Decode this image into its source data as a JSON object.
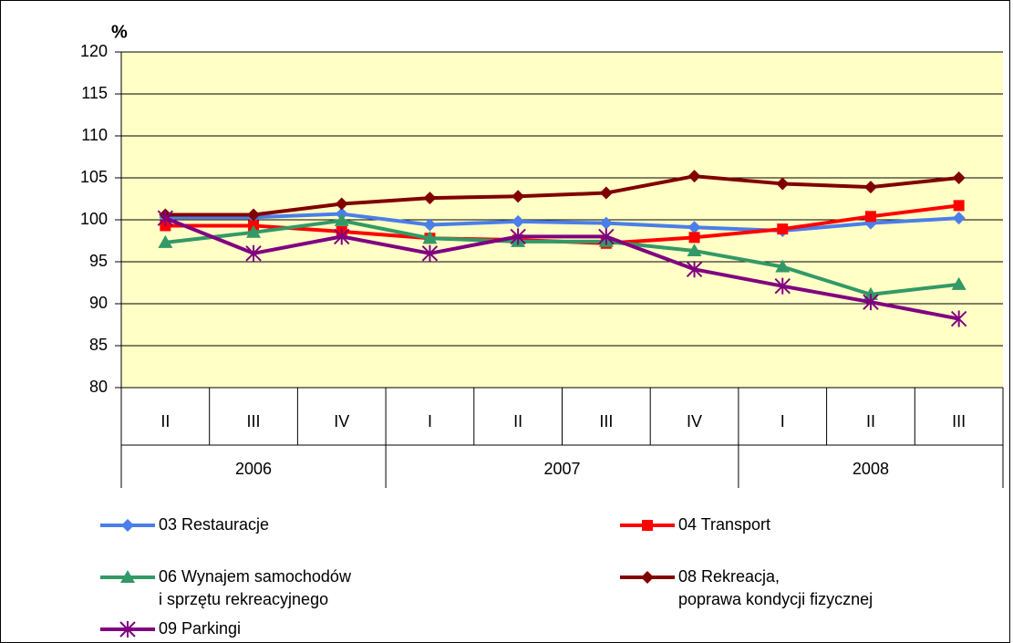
{
  "chart_data": {
    "type": "line",
    "ylabel": "%",
    "category_groups": [
      {
        "label": "2006",
        "categories": [
          "II",
          "III",
          "IV"
        ]
      },
      {
        "label": "2007",
        "categories": [
          "I",
          "II",
          "III",
          "IV"
        ]
      },
      {
        "label": "2008",
        "categories": [
          "I",
          "II",
          "III"
        ]
      }
    ],
    "ylim": [
      80,
      120
    ],
    "yticks": [
      80,
      85,
      90,
      95,
      100,
      105,
      110,
      115,
      120
    ],
    "grid": true,
    "series": [
      {
        "name": "03 Restauracje",
        "color": "#4a7ee8",
        "marker": "diamond",
        "values": [
          100.3,
          100.3,
          100.7,
          99.4,
          99.8,
          99.6,
          99.1,
          98.7,
          99.6,
          100.2
        ]
      },
      {
        "name": "04 Transport",
        "color": "#ff0000",
        "marker": "square",
        "values": [
          99.3,
          99.3,
          98.6,
          97.8,
          97.6,
          97.2,
          97.9,
          98.9,
          100.4,
          101.7
        ]
      },
      {
        "name": "06 Wynajem samochodów\ni sprzętu rekreacyjnego",
        "color": "#339966",
        "marker": "triangle",
        "values": [
          97.3,
          98.5,
          99.9,
          97.8,
          97.4,
          97.4,
          96.3,
          94.4,
          91.1,
          92.3
        ]
      },
      {
        "name": "08 Rekreacja,\npoprawa kondycji fizycznej",
        "color": "#800000",
        "marker": "diamond",
        "values": [
          100.6,
          100.6,
          101.9,
          102.6,
          102.8,
          103.2,
          105.2,
          104.3,
          103.9,
          105.0
        ]
      },
      {
        "name": "09 Parkingi",
        "color": "#800080",
        "marker": "asterisk",
        "values": [
          100.2,
          96.0,
          98.0,
          96.0,
          98.0,
          98.0,
          94.1,
          92.1,
          90.2,
          88.2
        ]
      }
    ]
  }
}
